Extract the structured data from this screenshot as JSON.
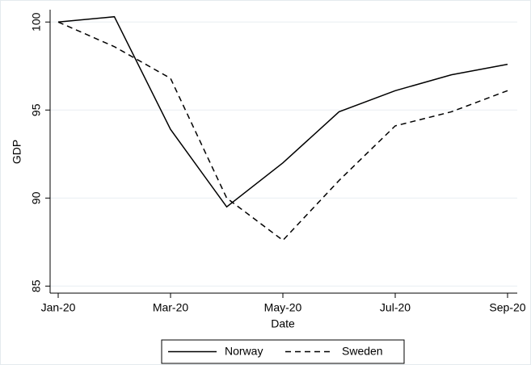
{
  "chart_data": {
    "type": "line",
    "x_label": "Date",
    "y_label": "GDP",
    "categories": [
      "Jan-20",
      null,
      "Mar-20",
      null,
      "May-20",
      null,
      "Jul-20",
      null,
      "Sep-20"
    ],
    "series": [
      {
        "name": "Norway",
        "color": "#000000",
        "dash": "solid",
        "values": [
          100,
          100.3,
          93.9,
          89.5,
          92.0,
          94.9,
          96.1,
          97.0,
          97.6
        ]
      },
      {
        "name": "Sweden",
        "color": "#000000",
        "dash": "dashed",
        "values": [
          100,
          98.6,
          96.8,
          90.0,
          87.6,
          91.0,
          94.1,
          94.9,
          96.1
        ]
      }
    ],
    "ylim": [
      84.6,
      100.7
    ],
    "yticks": [
      85,
      90,
      95,
      100
    ],
    "grid": true,
    "legend": "bottom"
  }
}
